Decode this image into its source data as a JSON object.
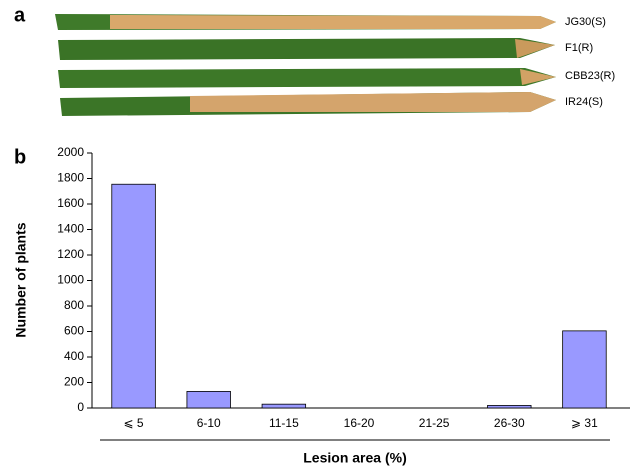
{
  "panel_a": {
    "label": "a",
    "leaves": [
      "JG30(S)",
      "F1(R)",
      "CBB23(R)",
      "IR24(S)"
    ]
  },
  "chart_data": {
    "type": "bar",
    "panel_label": "b",
    "x_label": "Lesion area (%)",
    "y_label": "Number of plants",
    "categories": [
      "⩽ 5",
      "6-10",
      "11-15",
      "16-20",
      "21-25",
      "26-30",
      "⩾ 31"
    ],
    "values": [
      1755,
      130,
      30,
      0,
      0,
      20,
      605
    ],
    "color": "#9999ff",
    "ylim": [
      0,
      2000
    ],
    "yticks": [
      0,
      200,
      400,
      600,
      800,
      1000,
      1200,
      1400,
      1600,
      1800,
      2000
    ],
    "grid": false
  }
}
